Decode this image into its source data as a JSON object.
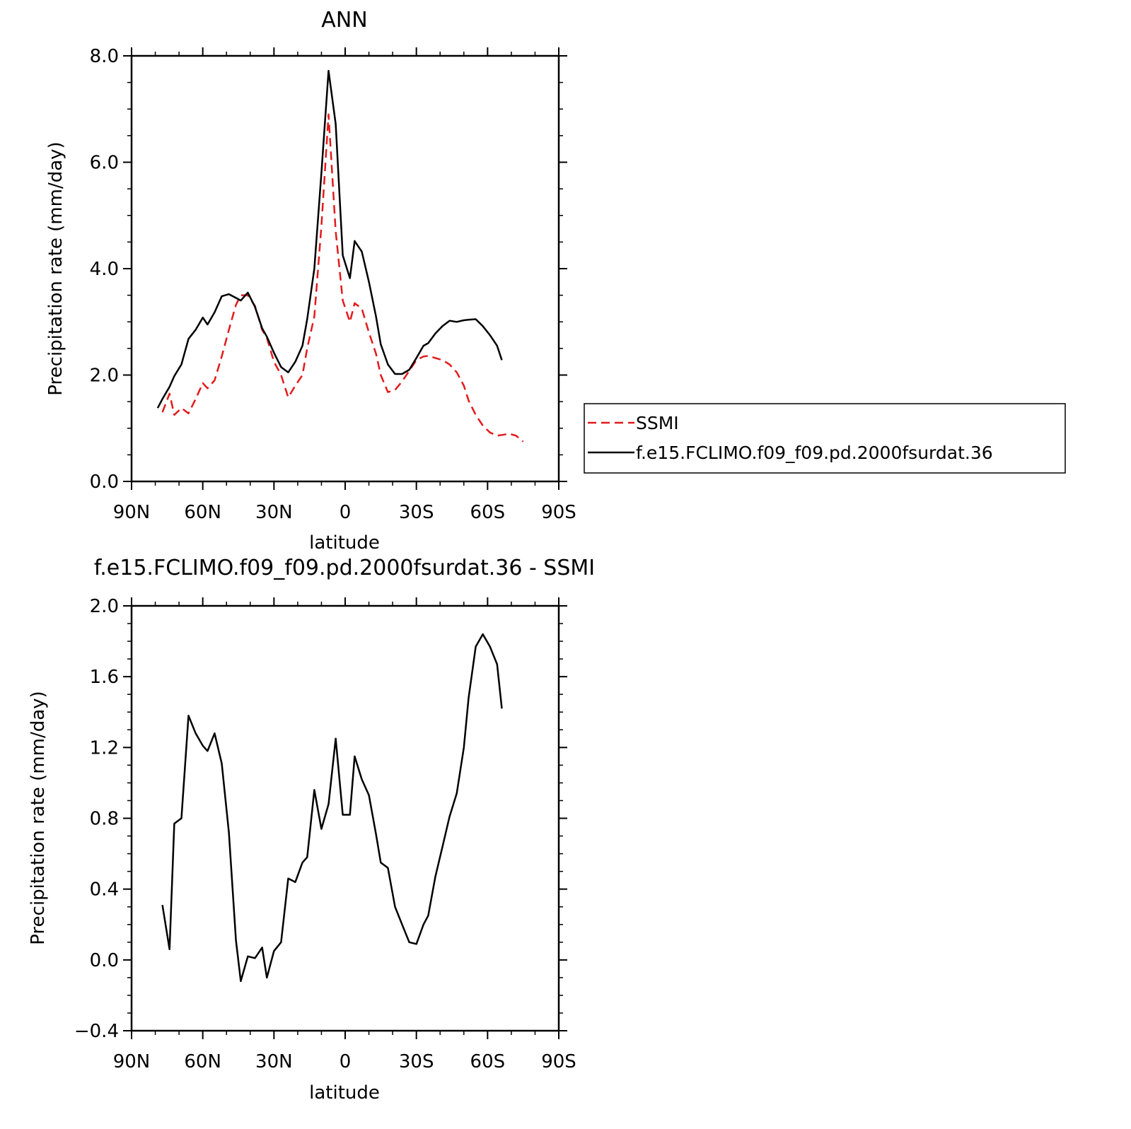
{
  "chart_data": [
    {
      "type": "line",
      "title": "ANN",
      "xlabel": "latitude",
      "ylabel": "Precipitation rate (mm/day)",
      "xlim": [
        90,
        -90
      ],
      "ylim": [
        0,
        8
      ],
      "xticks": [
        {
          "value": 90,
          "label": "90N"
        },
        {
          "value": 60,
          "label": "60N"
        },
        {
          "value": 30,
          "label": "30N"
        },
        {
          "value": 0,
          "label": "0"
        },
        {
          "value": -30,
          "label": "30S"
        },
        {
          "value": -60,
          "label": "60S"
        },
        {
          "value": -90,
          "label": "90S"
        }
      ],
      "yticks": [
        {
          "value": 0,
          "label": "0.0"
        },
        {
          "value": 2,
          "label": "2.0"
        },
        {
          "value": 4,
          "label": "4.0"
        },
        {
          "value": 6,
          "label": "6.0"
        },
        {
          "value": 8,
          "label": "8.0"
        }
      ],
      "legend_position": "right",
      "series": [
        {
          "name": "SSMI",
          "color": "#e41a1c",
          "dash": "dashed",
          "x": [
            77,
            74,
            72,
            69,
            66,
            63,
            60,
            58,
            55,
            52,
            49,
            46,
            44,
            41,
            38,
            35,
            33,
            30,
            27,
            24,
            21,
            18,
            16,
            13,
            10,
            7,
            4,
            1,
            -2,
            -4,
            -7,
            -10,
            -13,
            -15,
            -18,
            -21,
            -24,
            -27,
            -30,
            -33,
            -35,
            -38,
            -41,
            -44,
            -47,
            -50,
            -52,
            -55,
            -58,
            -61,
            -64,
            -67,
            -69,
            -72,
            -75
          ],
          "y": [
            1.3,
            1.65,
            1.25,
            1.38,
            1.28,
            1.55,
            1.85,
            1.75,
            1.9,
            2.35,
            2.85,
            3.32,
            3.5,
            3.5,
            3.3,
            2.85,
            2.7,
            2.25,
            2.0,
            1.58,
            1.8,
            2.0,
            2.5,
            3.1,
            4.8,
            6.9,
            4.7,
            3.4,
            3.0,
            3.35,
            3.25,
            2.8,
            2.4,
            2.0,
            1.68,
            1.72,
            1.88,
            2.08,
            2.28,
            2.35,
            2.36,
            2.32,
            2.28,
            2.2,
            2.05,
            1.8,
            1.52,
            1.25,
            1.05,
            0.92,
            0.86,
            0.88,
            0.9,
            0.86,
            0.75
          ]
        },
        {
          "name": "f.e15.FCLIMO.f09_f09.pd.2000fsurdat.36",
          "color": "#000000",
          "dash": "solid",
          "x": [
            79,
            77,
            74,
            72,
            69,
            66,
            63,
            60,
            58,
            55,
            52,
            49,
            46,
            44,
            41,
            38,
            35,
            33,
            30,
            27,
            24,
            21,
            18,
            16,
            13,
            10,
            7,
            4,
            1,
            -2,
            -4,
            -7,
            -10,
            -13,
            -15,
            -18,
            -21,
            -24,
            -27,
            -30,
            -33,
            -35,
            -38,
            -41,
            -44,
            -47,
            -50,
            -52,
            -55,
            -58,
            -61,
            -64,
            -66
          ],
          "y": [
            1.38,
            1.55,
            1.78,
            1.98,
            2.2,
            2.68,
            2.85,
            3.08,
            2.95,
            3.18,
            3.48,
            3.52,
            3.45,
            3.4,
            3.55,
            3.28,
            2.88,
            2.72,
            2.42,
            2.15,
            2.05,
            2.25,
            2.55,
            3.05,
            4.0,
            5.8,
            7.72,
            6.72,
            4.25,
            3.82,
            4.52,
            4.32,
            3.75,
            3.1,
            2.58,
            2.2,
            2.02,
            2.02,
            2.1,
            2.32,
            2.55,
            2.6,
            2.78,
            2.92,
            3.02,
            3.0,
            3.03,
            3.04,
            3.05,
            2.92,
            2.75,
            2.55,
            2.28
          ]
        }
      ]
    },
    {
      "type": "line",
      "title": "f.e15.FCLIMO.f09_f09.pd.2000fsurdat.36 - SSMI",
      "xlabel": "latitude",
      "ylabel": "Precipitation rate (mm/day)",
      "xlim": [
        90,
        -90
      ],
      "ylim": [
        -0.4,
        2.0
      ],
      "xticks": [
        {
          "value": 90,
          "label": "90N"
        },
        {
          "value": 60,
          "label": "60N"
        },
        {
          "value": 30,
          "label": "30N"
        },
        {
          "value": 0,
          "label": "0"
        },
        {
          "value": -30,
          "label": "30S"
        },
        {
          "value": -60,
          "label": "60S"
        },
        {
          "value": -90,
          "label": "90S"
        }
      ],
      "yticks": [
        {
          "value": -0.4,
          "label": "−0.4"
        },
        {
          "value": 0.0,
          "label": "0.0"
        },
        {
          "value": 0.4,
          "label": "0.4"
        },
        {
          "value": 0.8,
          "label": "0.8"
        },
        {
          "value": 1.2,
          "label": "1.2"
        },
        {
          "value": 1.6,
          "label": "1.6"
        },
        {
          "value": 2.0,
          "label": "2.0"
        }
      ],
      "series": [
        {
          "color": "#000000",
          "dash": "solid",
          "x": [
            77,
            74,
            72,
            69,
            66,
            63,
            60,
            58,
            55,
            52,
            49,
            46,
            44,
            41,
            38,
            35,
            33,
            30,
            27,
            24,
            21,
            18,
            16,
            13,
            10,
            7,
            4,
            1,
            -2,
            -4,
            -7,
            -10,
            -13,
            -15,
            -18,
            -21,
            -24,
            -27,
            -30,
            -33,
            -35,
            -38,
            -41,
            -44,
            -47,
            -50,
            -52,
            -55,
            -58,
            -61,
            -64,
            -66
          ],
          "y": [
            0.31,
            0.06,
            0.77,
            0.8,
            1.38,
            1.28,
            1.21,
            1.18,
            1.28,
            1.11,
            0.72,
            0.11,
            -0.12,
            0.02,
            0.01,
            0.07,
            -0.1,
            0.05,
            0.1,
            0.46,
            0.44,
            0.55,
            0.58,
            0.96,
            0.74,
            0.88,
            1.25,
            0.82,
            0.82,
            1.15,
            1.02,
            0.93,
            0.71,
            0.55,
            0.52,
            0.3,
            0.2,
            0.1,
            0.09,
            0.2,
            0.25,
            0.47,
            0.64,
            0.81,
            0.94,
            1.2,
            1.48,
            1.77,
            1.84,
            1.77,
            1.67,
            1.42
          ]
        }
      ]
    }
  ]
}
